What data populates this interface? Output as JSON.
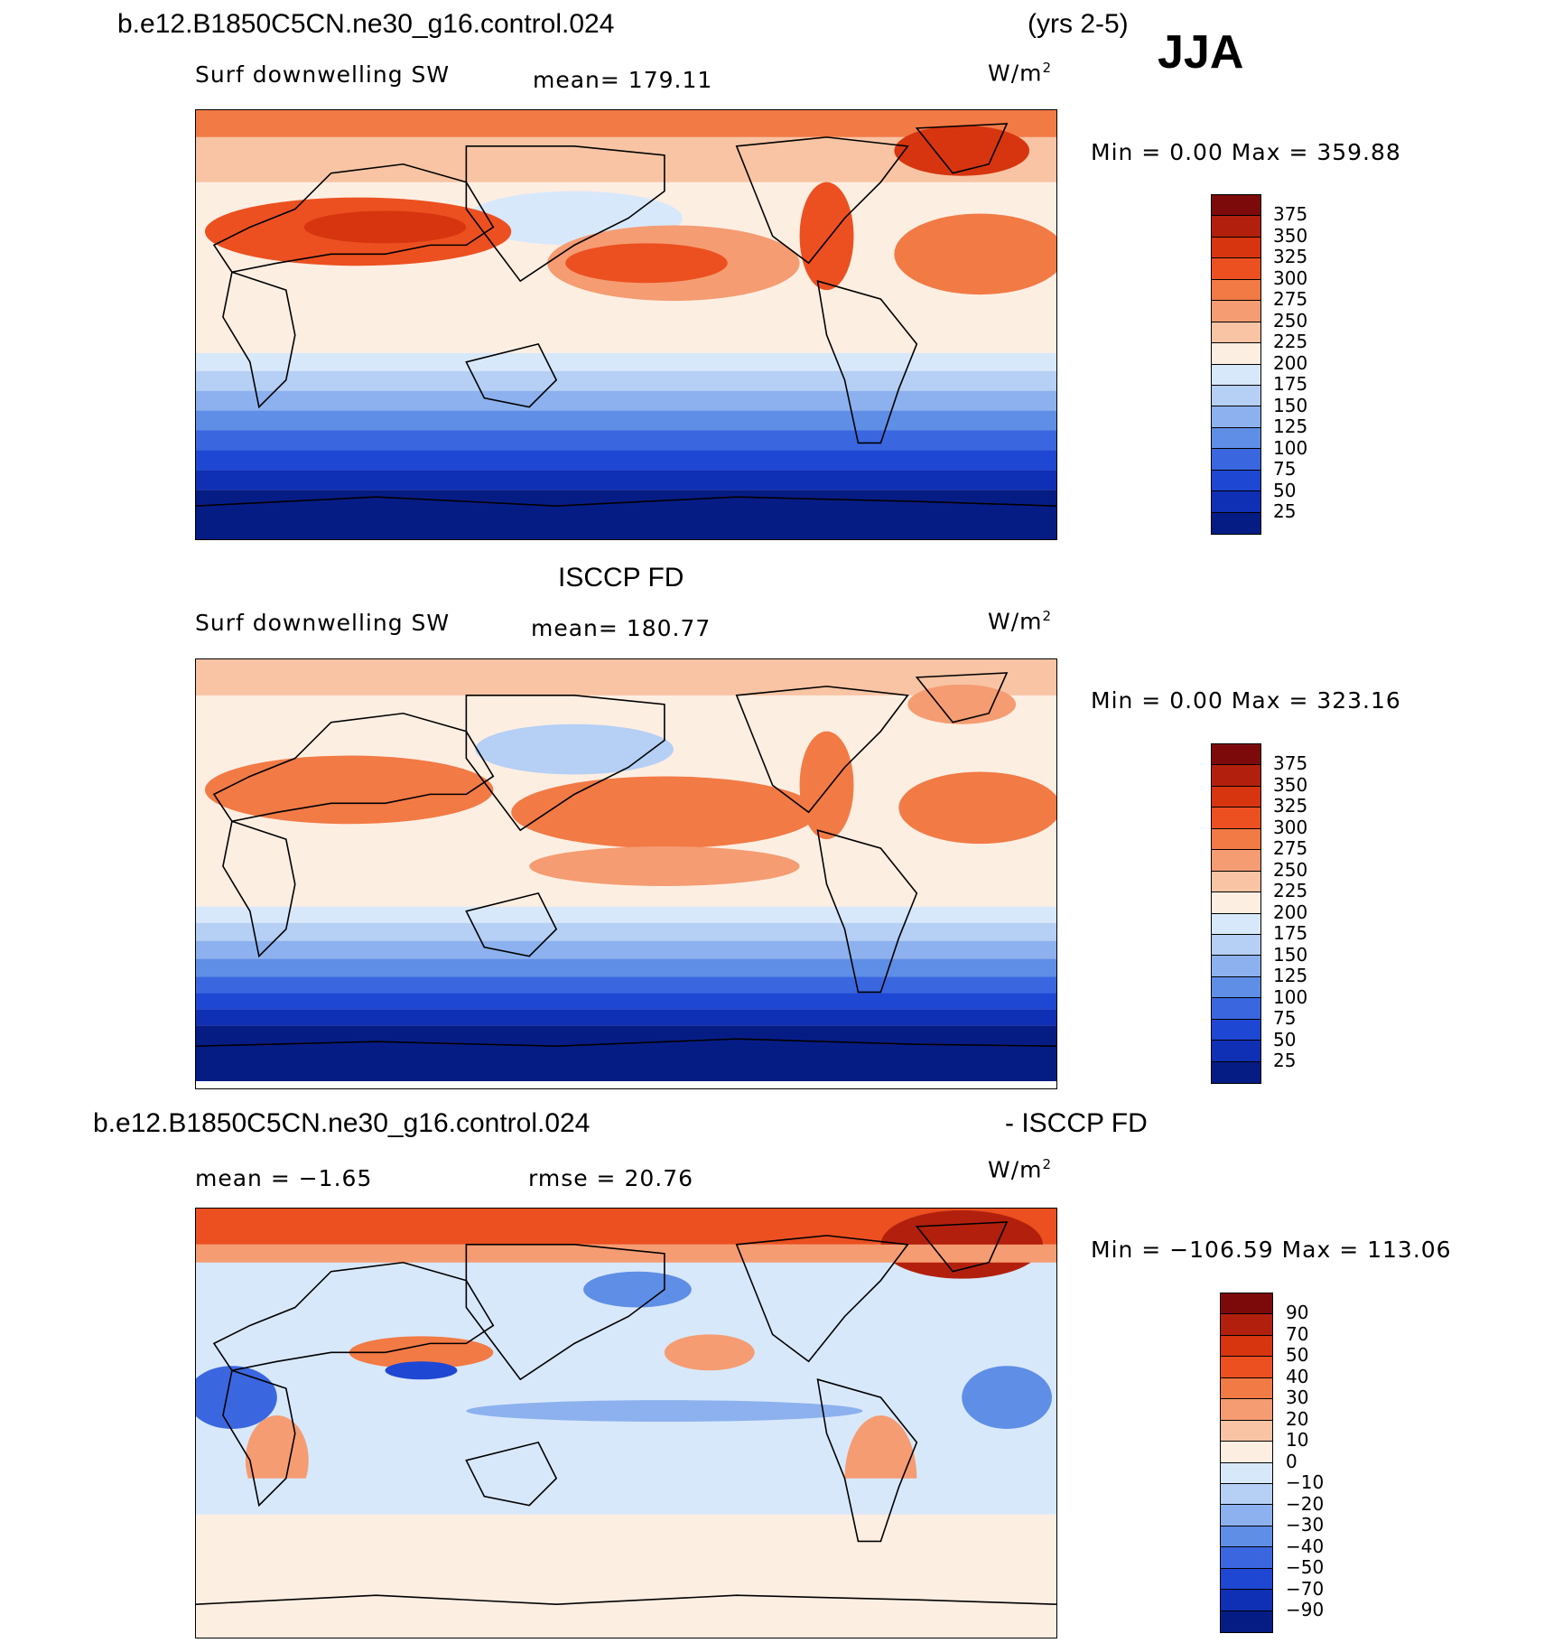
{
  "header": {
    "case_name": "b.e12.B1850C5CN.ne30_g16.control.024",
    "years": "(yrs 2-5)",
    "season": "JJA"
  },
  "panels": [
    {
      "title": "",
      "variable": "Surf downwelling SW",
      "mean_text": "mean=  179.11",
      "units": "W/m",
      "units_sup": "2",
      "minmax_text": "Min  =     0.00  Max  =  359.88",
      "colorbar": {
        "labels": [
          "375",
          "350",
          "325",
          "300",
          "275",
          "250",
          "225",
          "200",
          "175",
          "150",
          "125",
          "100",
          "75",
          "50",
          "25"
        ],
        "colors": [
          "#7d0a0a",
          "#b2200d",
          "#d6350f",
          "#ec5020",
          "#f27a45",
          "#f59c72",
          "#f8c4a4",
          "#fdeee2",
          "#d8e8fb",
          "#b5cff5",
          "#8cb1ee",
          "#5f8ee6",
          "#3a67e0",
          "#1e47d3",
          "#0f2fb5",
          "#061c85"
        ]
      }
    },
    {
      "title": "ISCCP FD",
      "variable": "Surf downwelling SW",
      "mean_text": "mean=  180.77",
      "units": "W/m",
      "units_sup": "2",
      "minmax_text": "Min  =     0.00  Max  =  323.16",
      "colorbar": {
        "labels": [
          "375",
          "350",
          "325",
          "300",
          "275",
          "250",
          "225",
          "200",
          "175",
          "150",
          "125",
          "100",
          "75",
          "50",
          "25"
        ],
        "colors": [
          "#7d0a0a",
          "#b2200d",
          "#d6350f",
          "#ec5020",
          "#f27a45",
          "#f59c72",
          "#f8c4a4",
          "#fdeee2",
          "#d8e8fb",
          "#b5cff5",
          "#8cb1ee",
          "#5f8ee6",
          "#3a67e0",
          "#1e47d3",
          "#0f2fb5",
          "#061c85"
        ]
      }
    },
    {
      "title_left": "b.e12.B1850C5CN.ne30_g16.control.024",
      "title_right": "- ISCCP FD",
      "mean_text": "mean  =   −1.65",
      "rmse_text": "rmse  =   20.76",
      "units": "W/m",
      "units_sup": "2",
      "minmax_text": "Min  =  −106.59  Max  =  113.06",
      "colorbar": {
        "labels": [
          "90",
          "70",
          "50",
          "40",
          "30",
          "20",
          "10",
          "0",
          "−10",
          "−20",
          "−30",
          "−40",
          "−50",
          "−70",
          "−90"
        ],
        "colors": [
          "#7d0a0a",
          "#b2200d",
          "#d6350f",
          "#ec5020",
          "#f27a45",
          "#f59c72",
          "#f8c4a4",
          "#fdeee2",
          "#d8e8fb",
          "#b5cff5",
          "#8cb1ee",
          "#5f8ee6",
          "#3a67e0",
          "#1e47d3",
          "#0f2fb5",
          "#061c85"
        ]
      }
    }
  ]
}
